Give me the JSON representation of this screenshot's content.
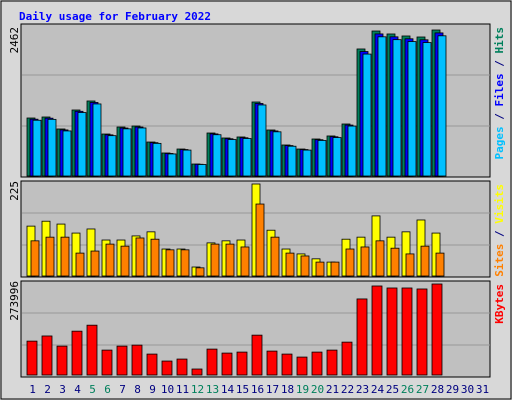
{
  "chart_data": [
    {
      "type": "bar",
      "title": "Daily usage for February 2022",
      "separator": " / ",
      "ylim": [
        0,
        2462
      ],
      "yticks": [
        2462
      ],
      "series": [
        {
          "name": "Pages",
          "color": "#00c0ff",
          "values": [
            940,
            955,
            760,
            1070,
            1215,
            680,
            795,
            810,
            550,
            372,
            437,
            194,
            696,
            615,
            632,
            1198,
            745,
            502,
            437,
            599,
            648,
            842,
            2056,
            2347,
            2299,
            2267,
            2250,
            2364,
            null,
            null,
            null
          ]
        },
        {
          "name": "Files",
          "color": "#0000ff",
          "values": [
            958,
            975,
            777,
            1091,
            1240,
            694,
            809,
            826,
            562,
            380,
            446,
            198,
            710,
            628,
            645,
            1223,
            760,
            513,
            446,
            612,
            662,
            859,
            2099,
            2396,
            2347,
            2314,
            2297,
            2413,
            null,
            null,
            null
          ]
        },
        {
          "name": "Hits",
          "color": "#00805c",
          "values": [
            978,
            995,
            793,
            1113,
            1265,
            708,
            826,
            843,
            573,
            388,
            455,
            202,
            725,
            641,
            658,
            1248,
            776,
            523,
            455,
            624,
            675,
            877,
            2142,
            2445,
            2395,
            2361,
            2344,
            2462,
            null,
            null,
            null
          ]
        }
      ]
    },
    {
      "type": "bar",
      "separator": " / ",
      "ylim": [
        0,
        225
      ],
      "yticks": [
        225
      ],
      "series": [
        {
          "name": "Sites",
          "color": "#ff8000",
          "values": [
            86,
            95,
            95,
            56,
            61,
            78,
            73,
            93,
            90,
            64,
            64,
            20,
            78,
            78,
            71,
            176,
            95,
            56,
            49,
            34,
            34,
            66,
            71,
            86,
            68,
            54,
            73,
            56,
            null,
            null,
            null
          ]
        },
        {
          "name": "Visits",
          "color": "#ffff00",
          "values": [
            122,
            134,
            127,
            105,
            115,
            88,
            88,
            98,
            108,
            66,
            66,
            22,
            81,
            86,
            88,
            225,
            112,
            66,
            54,
            42,
            34,
            90,
            95,
            147,
            95,
            108,
            137,
            105,
            null,
            null,
            null
          ]
        }
      ]
    },
    {
      "type": "bar",
      "ylim": [
        0,
        273996
      ],
      "yticks": [
        273996
      ],
      "categories": [
        "1",
        "2",
        "3",
        "4",
        "5",
        "6",
        "7",
        "8",
        "9",
        "10",
        "11",
        "12",
        "13",
        "14",
        "15",
        "16",
        "17",
        "18",
        "19",
        "20",
        "21",
        "22",
        "23",
        "24",
        "25",
        "26",
        "27",
        "28",
        "29",
        "30",
        "31"
      ],
      "category_colors": [
        "#000080",
        "#000080",
        "#000080",
        "#000080",
        "#00805c",
        "#00805c",
        "#000080",
        "#000080",
        "#000080",
        "#000080",
        "#000080",
        "#00805c",
        "#00805c",
        "#000080",
        "#000080",
        "#000080",
        "#000080",
        "#000080",
        "#00805c",
        "#00805c",
        "#000080",
        "#000080",
        "#000080",
        "#000080",
        "#000080",
        "#00805c",
        "#00805c",
        "#000080",
        "#000080",
        "#000080",
        "#000080"
      ],
      "series": [
        {
          "name": "KBytes",
          "color": "#ff0000",
          "values": [
            102000,
            117500,
            87000,
            132000,
            150000,
            75000,
            87000,
            90000,
            63000,
            42000,
            48000,
            18000,
            78000,
            66000,
            69000,
            120000,
            72000,
            63000,
            54000,
            69000,
            75000,
            99000,
            229000,
            268000,
            262000,
            262000,
            259000,
            273996,
            null,
            null,
            null
          ]
        }
      ]
    }
  ]
}
